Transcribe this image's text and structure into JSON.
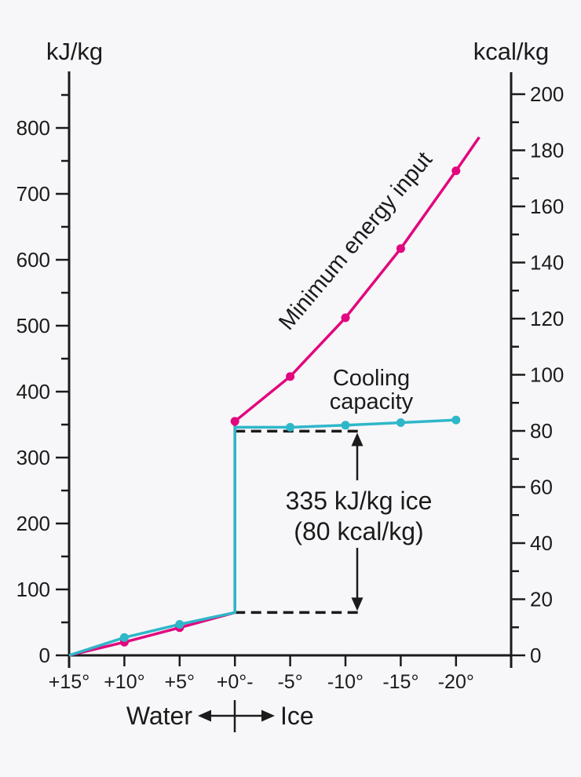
{
  "figure": {
    "background": "#f7f7f9",
    "ink": "#1b1b1b"
  },
  "chart_data": {
    "type": "line",
    "title": "",
    "left_axis": {
      "title": "kJ/kg",
      "range": [
        0,
        885
      ],
      "major_tick_values": [
        0,
        100,
        200,
        300,
        400,
        500,
        600,
        700,
        800
      ],
      "minor_tick_values": [
        50,
        150,
        250,
        350,
        450,
        550,
        650,
        750,
        850
      ]
    },
    "right_axis": {
      "title": "kcal/kg",
      "range": [
        0,
        208
      ],
      "major_tick_values": [
        0,
        20,
        40,
        60,
        80,
        100,
        120,
        140,
        160,
        180,
        200
      ],
      "minor_tick_values": [
        10,
        30,
        50,
        70,
        90,
        110,
        130,
        150,
        170,
        190
      ]
    },
    "x_axis": {
      "tick_labels": [
        "+15°",
        "+10°",
        "+5°",
        "+0°-",
        "-5°",
        "-10°",
        "-15°",
        "-20°"
      ],
      "tick_temps": [
        15,
        10,
        5,
        0,
        -5,
        -10,
        -15,
        -20
      ],
      "zone_left_label": "Water",
      "zone_right_label": "Ice"
    },
    "series": [
      {
        "name": "Minimum energy input",
        "label": "Minimum energy input",
        "color": "#e2077e",
        "points_t_kj": [
          [
            15,
            0
          ],
          [
            10,
            20
          ],
          [
            5,
            42
          ],
          [
            0,
            65
          ],
          [
            0,
            355
          ],
          [
            -5,
            423
          ],
          [
            -10,
            512
          ],
          [
            -15,
            617
          ],
          [
            -20,
            735
          ],
          [
            -22.1,
            786
          ]
        ],
        "markers_t_kj": [
          [
            10,
            20
          ],
          [
            5,
            42
          ],
          [
            0,
            355
          ],
          [
            -5,
            423
          ],
          [
            -10,
            512
          ],
          [
            -15,
            617
          ],
          [
            -20,
            735
          ]
        ]
      },
      {
        "name": "Cooling capacity",
        "label_line1": "Cooling",
        "label_line2": "capacity",
        "color": "#2eb7c9",
        "points_t_kj": [
          [
            15,
            0
          ],
          [
            10,
            27
          ],
          [
            5,
            47
          ],
          [
            0,
            65
          ],
          [
            0,
            346
          ],
          [
            -5,
            346
          ],
          [
            -10,
            349
          ],
          [
            -15,
            353
          ],
          [
            -20,
            357
          ]
        ],
        "markers_t_kj": [
          [
            10,
            27
          ],
          [
            5,
            47
          ],
          [
            -5,
            346
          ],
          [
            -10,
            349
          ],
          [
            -15,
            353
          ],
          [
            -20,
            357
          ]
        ]
      }
    ],
    "annotations": {
      "latent_heat_line1": "335 kJ/kg ice",
      "latent_heat_line2": "(80 kcal/kg)",
      "dashed_upper_kj": 340,
      "dashed_lower_kj": 65
    }
  }
}
